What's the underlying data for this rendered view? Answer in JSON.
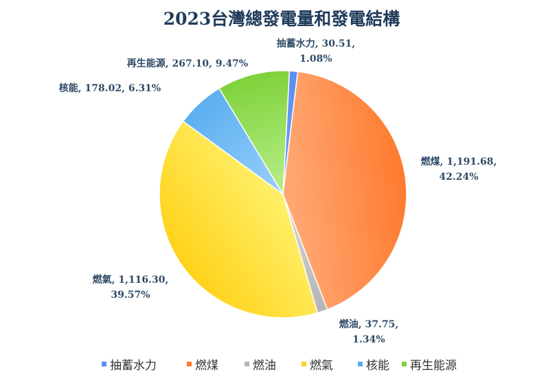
{
  "chart_data": {
    "type": "pie",
    "title": "2023台灣總發電量和發電結構",
    "legend": "bottom",
    "start_angle_deg": 3,
    "slices": [
      {
        "name": "抽蓄水力",
        "value": 30.51,
        "value_label": "30.51",
        "percent_label": "1.08%",
        "color": "#5b8cf0",
        "gradient_to": "#7aa2f7"
      },
      {
        "name": "燃煤",
        "value": 1191.68,
        "value_label": "1,191.68",
        "percent_label": "42.24%",
        "color": "#ff7a2e",
        "gradient_to": "#ffaa77"
      },
      {
        "name": "燃油",
        "value": 37.75,
        "value_label": "37.75",
        "percent_label": "1.34%",
        "color": "#b5b5b5",
        "gradient_to": "#d6d6d6"
      },
      {
        "name": "燃氣",
        "value": 1116.3,
        "value_label": "1,116.30",
        "percent_label": "39.57%",
        "color": "#ffd21a",
        "gradient_to": "#fff06a"
      },
      {
        "name": "核能",
        "value": 178.02,
        "value_label": "178.02",
        "percent_label": "6.31%",
        "color": "#5aaef0",
        "gradient_to": "#9ad0fb"
      },
      {
        "name": "再生能源",
        "value": 267.1,
        "value_label": "267.10",
        "percent_label": "9.47%",
        "color": "#7ed23a",
        "gradient_to": "#b8ef8a"
      }
    ]
  }
}
